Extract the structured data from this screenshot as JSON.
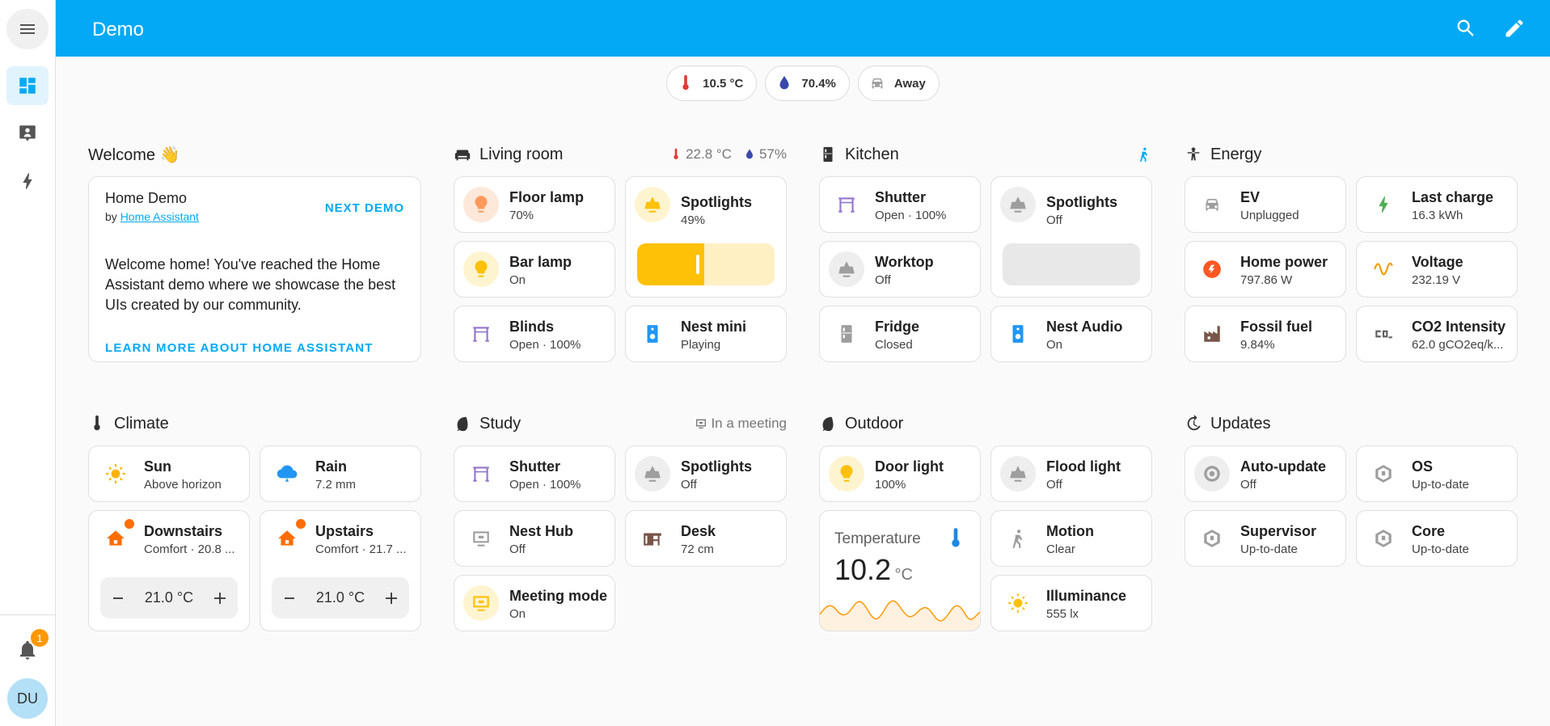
{
  "header": {
    "title": "Demo"
  },
  "badges": [
    "10.5 °C",
    "70.4%",
    "Away"
  ],
  "sidebar": {
    "notifications": "1",
    "user": "DU"
  },
  "sections": [
    {
      "title": "Welcome 👋",
      "card": {
        "title": "Home Demo",
        "by": "by",
        "link": "Home Assistant",
        "action": "NEXT DEMO",
        "text": "Welcome home! You've reached the Home Assistant demo where we showcase the best UIs created by our community.",
        "footer": "LEARN MORE ABOUT HOME ASSISTANT"
      }
    },
    {
      "title": "Living room",
      "badges": [
        "22.8 °C",
        "57%"
      ],
      "tiles": [
        {
          "name": "Floor lamp",
          "state": "70%"
        },
        {
          "name": "Spotlights",
          "state": "49%",
          "brightness": 49
        },
        {
          "name": "Bar lamp",
          "state": "On"
        },
        {
          "name": "Blinds",
          "state": "Open · 100%"
        },
        {
          "name": "Nest mini",
          "state": "Playing"
        }
      ]
    },
    {
      "title": "Kitchen",
      "tiles": [
        {
          "name": "Shutter",
          "state": "Open · 100%"
        },
        {
          "name": "Spotlights",
          "state": "Off",
          "brightness": 0
        },
        {
          "name": "Worktop",
          "state": "Off"
        },
        {
          "name": "Fridge",
          "state": "Closed"
        },
        {
          "name": "Nest Audio",
          "state": "On"
        }
      ]
    },
    {
      "title": "Energy",
      "tiles": [
        {
          "name": "EV",
          "state": "Unplugged"
        },
        {
          "name": "Last charge",
          "state": "16.3 kWh"
        },
        {
          "name": "Home power",
          "state": "797.86 W"
        },
        {
          "name": "Voltage",
          "state": "232.19 V"
        },
        {
          "name": "Fossil fuel",
          "state": "9.84%"
        },
        {
          "name": "CO2 Intensity",
          "state": "62.0 gCO2eq/k..."
        }
      ]
    },
    {
      "title": "Climate",
      "tiles": [
        {
          "name": "Sun",
          "state": "Above horizon"
        },
        {
          "name": "Rain",
          "state": "7.2 mm"
        },
        {
          "name": "Downstairs",
          "state": "Comfort · 20.8 ...",
          "setpoint": "21.0 °C"
        },
        {
          "name": "Upstairs",
          "state": "Comfort · 21.7 ...",
          "setpoint": "21.0 °C"
        }
      ]
    },
    {
      "title": "Study",
      "badges": [
        "In a meeting"
      ],
      "tiles": [
        {
          "name": "Shutter",
          "state": "Open · 100%"
        },
        {
          "name": "Spotlights",
          "state": "Off"
        },
        {
          "name": "Nest Hub",
          "state": "Off"
        },
        {
          "name": "Desk",
          "state": "72 cm"
        },
        {
          "name": "Meeting mode",
          "state": "On"
        }
      ]
    },
    {
      "title": "Outdoor",
      "tiles": [
        {
          "name": "Door light",
          "state": "100%"
        },
        {
          "name": "Flood light",
          "state": "Off"
        },
        {
          "name": "Temperature",
          "value": "10.2",
          "unit": "°C"
        },
        {
          "name": "Motion",
          "state": "Clear"
        },
        {
          "name": "Illuminance",
          "state": "555 lx"
        }
      ]
    },
    {
      "title": "Updates",
      "tiles": [
        {
          "name": "Auto-update",
          "state": "Off"
        },
        {
          "name": "OS",
          "state": "Up-to-date"
        },
        {
          "name": "Supervisor",
          "state": "Up-to-date"
        },
        {
          "name": "Core",
          "state": "Up-to-date"
        }
      ]
    }
  ]
}
